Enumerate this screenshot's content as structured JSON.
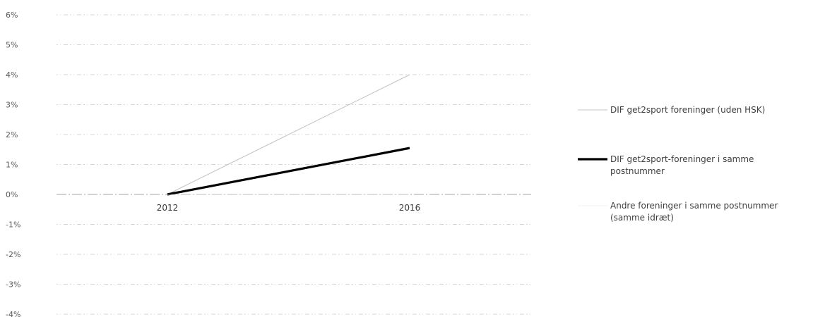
{
  "chart_data": {
    "type": "line",
    "categories": [
      "2012",
      "2016"
    ],
    "ylim": [
      -4,
      6
    ],
    "yticks": [
      "6%",
      "5%",
      "4%",
      "3%",
      "2%",
      "1%",
      "0%",
      "-1%",
      "-2%",
      "-3%",
      "-4%"
    ],
    "ytick_values": [
      6,
      5,
      4,
      3,
      2,
      1,
      0,
      -1,
      -2,
      -3,
      -4
    ],
    "grid": true,
    "legend_position": "right",
    "series": [
      {
        "name": "DIF get2sport foreninger (uden HSK)",
        "name_lines": [
          "DIF get2sport foreninger (uden HSK)"
        ],
        "values": [
          0,
          4.0
        ],
        "color": "#c4c4c4",
        "stroke": "thin"
      },
      {
        "name": "DIF get2sport-foreninger i samme postnummer",
        "name_lines": [
          "DIF get2sport-foreninger i samme",
          "postnummer"
        ],
        "values": [
          0,
          1.55
        ],
        "color": "#000000",
        "stroke": "thick"
      },
      {
        "name": "Andre foreninger i samme postnummer (samme idræt)",
        "name_lines": [
          "Andre foreninger i samme postnummer",
          "(samme idræt)"
        ],
        "values": [
          0,
          0
        ],
        "color": "#e4e4e4",
        "stroke": "hair"
      }
    ]
  }
}
